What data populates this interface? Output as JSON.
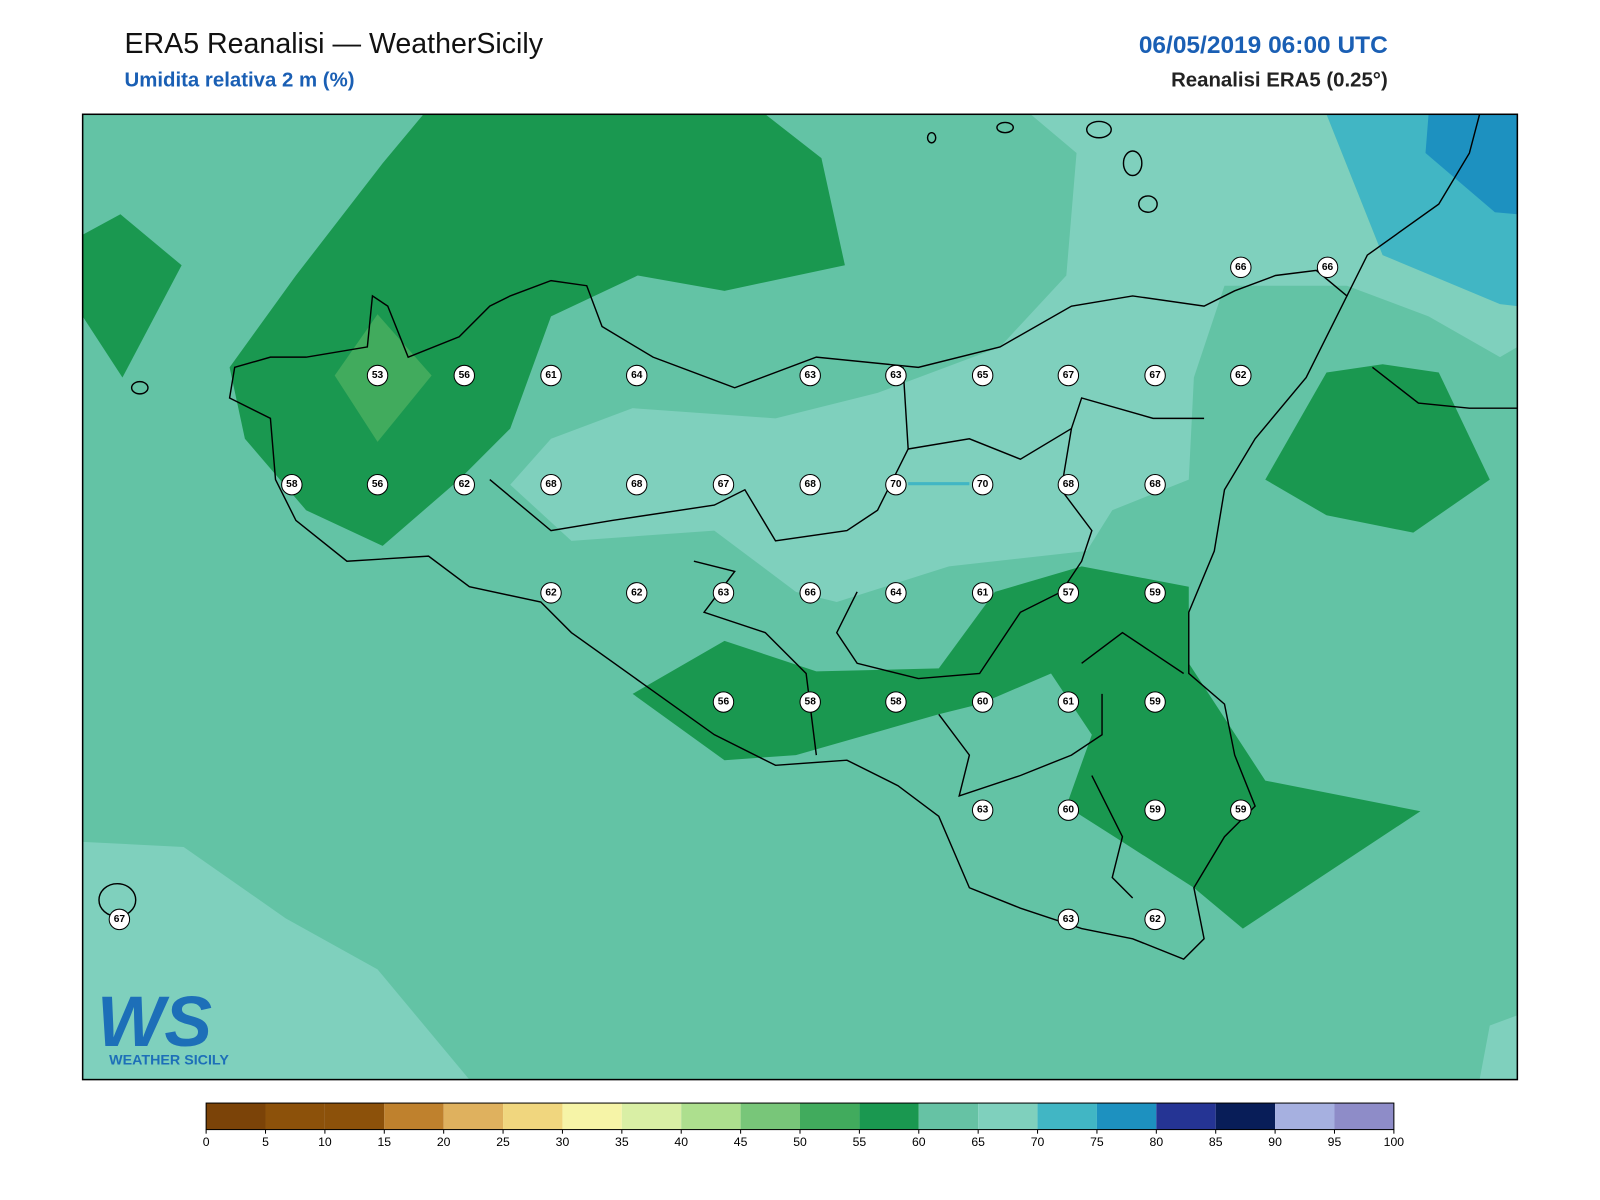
{
  "header": {
    "title": "ERA5 Reanalisi — WeatherSicily",
    "subtitle": "Umidita relativa 2 m (%)",
    "datetime": "06/05/2019 06:00 UTC",
    "source": "Reanalisi ERA5 (0.25°)"
  },
  "stations": [
    66,
    66,
    53,
    56,
    61,
    64,
    63,
    63,
    65,
    67,
    67,
    62,
    58,
    56,
    62,
    68,
    68,
    67,
    68,
    70,
    70,
    68,
    68,
    62,
    62,
    63,
    66,
    64,
    61,
    57,
    59,
    56,
    58,
    58,
    60,
    61,
    59,
    63,
    60,
    59,
    59,
    67,
    63,
    62
  ],
  "logo": {
    "mark": "WS",
    "caption": "WEATHER SICILY"
  },
  "colorbar": {
    "ticks": [
      0,
      5,
      10,
      15,
      20,
      25,
      30,
      35,
      40,
      45,
      50,
      55,
      60,
      65,
      70,
      75,
      80,
      85,
      90,
      95,
      100
    ],
    "colors": [
      "#7b4308",
      "#8c510a",
      "#8c510a",
      "#bf812d",
      "#dfb15e",
      "#f0d67e",
      "#f6f4a7",
      "#d9efa5",
      "#addf8e",
      "#78c679",
      "#41ab5d",
      "#1a9850",
      "#66c2a4",
      "#7fd0bd",
      "#41b6c4",
      "#1d91c0",
      "#253494",
      "#081d58",
      "#a6b0e0",
      "#8e8cc8"
    ]
  }
}
